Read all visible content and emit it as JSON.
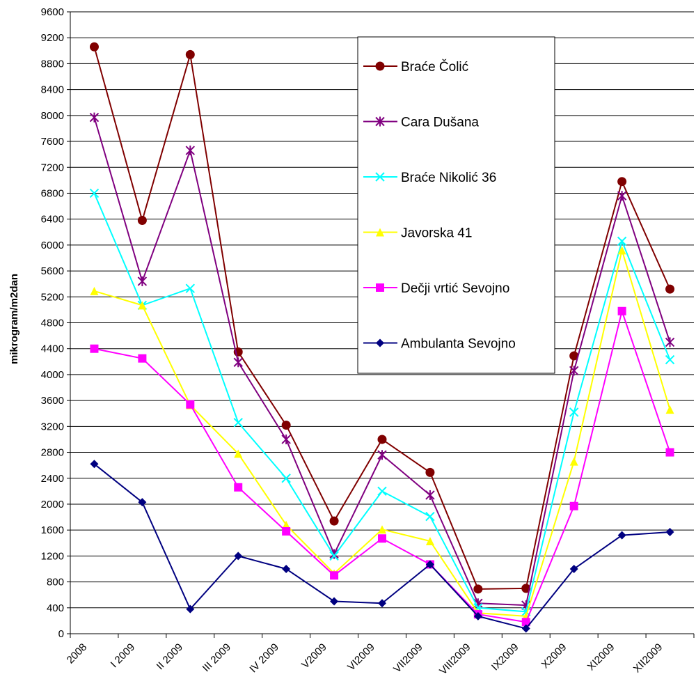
{
  "chart_data": {
    "type": "line",
    "title": "",
    "xlabel": "",
    "ylabel": "mikrogram/m2dan",
    "ylim": [
      0,
      9600
    ],
    "y_ticks": [
      0,
      400,
      800,
      1200,
      1600,
      2000,
      2400,
      2800,
      3200,
      3600,
      4000,
      4400,
      4800,
      5200,
      5600,
      6000,
      6400,
      6800,
      7200,
      7600,
      8000,
      8400,
      8800,
      9200,
      9600
    ],
    "grid": "horizontal",
    "legend_position": "inside-upper-right",
    "categories": [
      "2008",
      "I 2009",
      "II 2009",
      "III 2009",
      "IV 2009",
      "V2009",
      "VI2009",
      "VII2009",
      "VIII2009",
      "IX2009",
      "X2009",
      "XI2009",
      "XII2009"
    ],
    "series": [
      {
        "name": "Braće Čolić",
        "color": "#800000",
        "marker": "circle",
        "values": [
          9060,
          6380,
          8940,
          4350,
          3220,
          1740,
          3000,
          2490,
          690,
          700,
          4290,
          6980,
          5320
        ]
      },
      {
        "name": "Cara Dušana",
        "color": "#800080",
        "marker": "star",
        "values": [
          7970,
          5440,
          7460,
          4190,
          3000,
          1230,
          2760,
          2140,
          470,
          440,
          4060,
          6760,
          4500
        ]
      },
      {
        "name": "Braće Nikolić 36",
        "color": "#00ffff",
        "marker": "x",
        "values": [
          6800,
          5070,
          5330,
          3260,
          2400,
          1200,
          2200,
          1810,
          400,
          340,
          3420,
          6060,
          4230
        ]
      },
      {
        "name": "Javorska 41",
        "color": "#ffff00",
        "marker": "triangle",
        "values": [
          5290,
          5070,
          3530,
          2780,
          1680,
          930,
          1610,
          1430,
          320,
          270,
          2660,
          5920,
          3460
        ]
      },
      {
        "name": "Dečji vrtić Sevojno",
        "color": "#ff00ff",
        "marker": "square",
        "values": [
          4400,
          4250,
          3540,
          2260,
          1580,
          900,
          1470,
          1070,
          300,
          180,
          1970,
          4980,
          2800
        ]
      },
      {
        "name": "Ambulanta Sevojno",
        "color": "#000080",
        "marker": "diamond",
        "values": [
          2620,
          2030,
          380,
          1200,
          1000,
          500,
          470,
          1070,
          270,
          80,
          1000,
          1520,
          1570
        ]
      }
    ]
  }
}
